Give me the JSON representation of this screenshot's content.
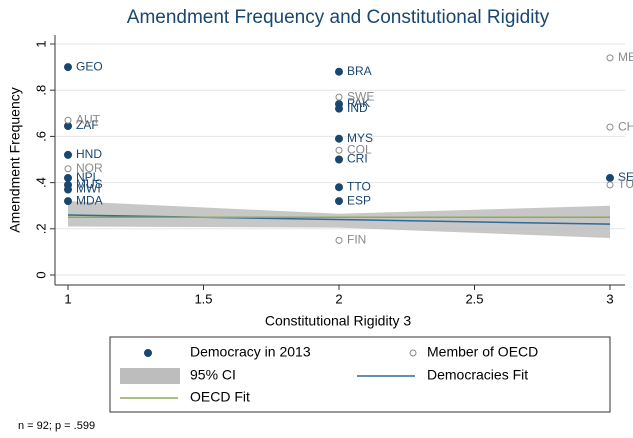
{
  "chart_data": {
    "type": "scatter",
    "title": "Amendment Frequency and Constitutional Rigidity",
    "xlabel": "Constitutional Rigidity 3",
    "ylabel": "Amendment Frequency",
    "note": "n = 92; p = .599",
    "xlim": [
      1,
      3
    ],
    "ylim": [
      0,
      1
    ],
    "xticks": [
      1,
      1.5,
      2,
      2.5,
      3
    ],
    "yticks": [
      0,
      {
        "value": 0.2,
        "label": ".2"
      },
      {
        "value": 0.4,
        "label": ".4"
      },
      {
        "value": 0.6,
        "label": ".6"
      },
      {
        "value": 0.8,
        "label": ".8"
      },
      1
    ],
    "grid": true,
    "band": {
      "name": "95% CI",
      "color": "#bdbdbd",
      "x": [
        1,
        2,
        3
      ],
      "lower": [
        0.21,
        0.205,
        0.16
      ],
      "upper": [
        0.32,
        0.265,
        0.3
      ]
    },
    "series": [
      {
        "name": "Democracy in 2013",
        "kind": "points",
        "marker": "filled",
        "color": "#1a476f",
        "x": [
          1,
          1,
          1,
          1,
          1,
          1,
          1,
          2,
          2,
          2,
          2,
          2,
          2,
          2,
          3
        ],
        "values": [
          0.9,
          0.645,
          0.52,
          0.42,
          0.39,
          0.37,
          0.32,
          0.88,
          0.74,
          0.72,
          0.59,
          0.5,
          0.38,
          0.32,
          0.42
        ],
        "labels": [
          "GEO",
          "ZAF",
          "HND",
          "NPL",
          "MUS",
          "MWI",
          "MDA",
          "BRA",
          "PAK",
          "IND",
          "MYS",
          "CRI",
          "TTO",
          "ESP",
          "SE"
        ]
      },
      {
        "name": "Member of OECD",
        "kind": "points",
        "marker": "hollow",
        "color": "#8a8a8a",
        "x": [
          1,
          1,
          2,
          2,
          2,
          3,
          3,
          3
        ],
        "values": [
          0.67,
          0.46,
          0.77,
          0.54,
          0.15,
          0.94,
          0.64,
          0.39
        ],
        "labels": [
          "AUT",
          "NOR",
          "SWE",
          "COL",
          "FIN",
          "ME",
          "CH",
          "TU"
        ]
      },
      {
        "name": "Democracies Fit",
        "kind": "line",
        "color": "#2f6a9a",
        "x": [
          1,
          3
        ],
        "values": [
          0.26,
          0.22
        ]
      },
      {
        "name": "OECD Fit",
        "kind": "line",
        "color": "#8fa85a",
        "x": [
          1,
          3
        ],
        "values": [
          0.25,
          0.25
        ]
      }
    ]
  }
}
